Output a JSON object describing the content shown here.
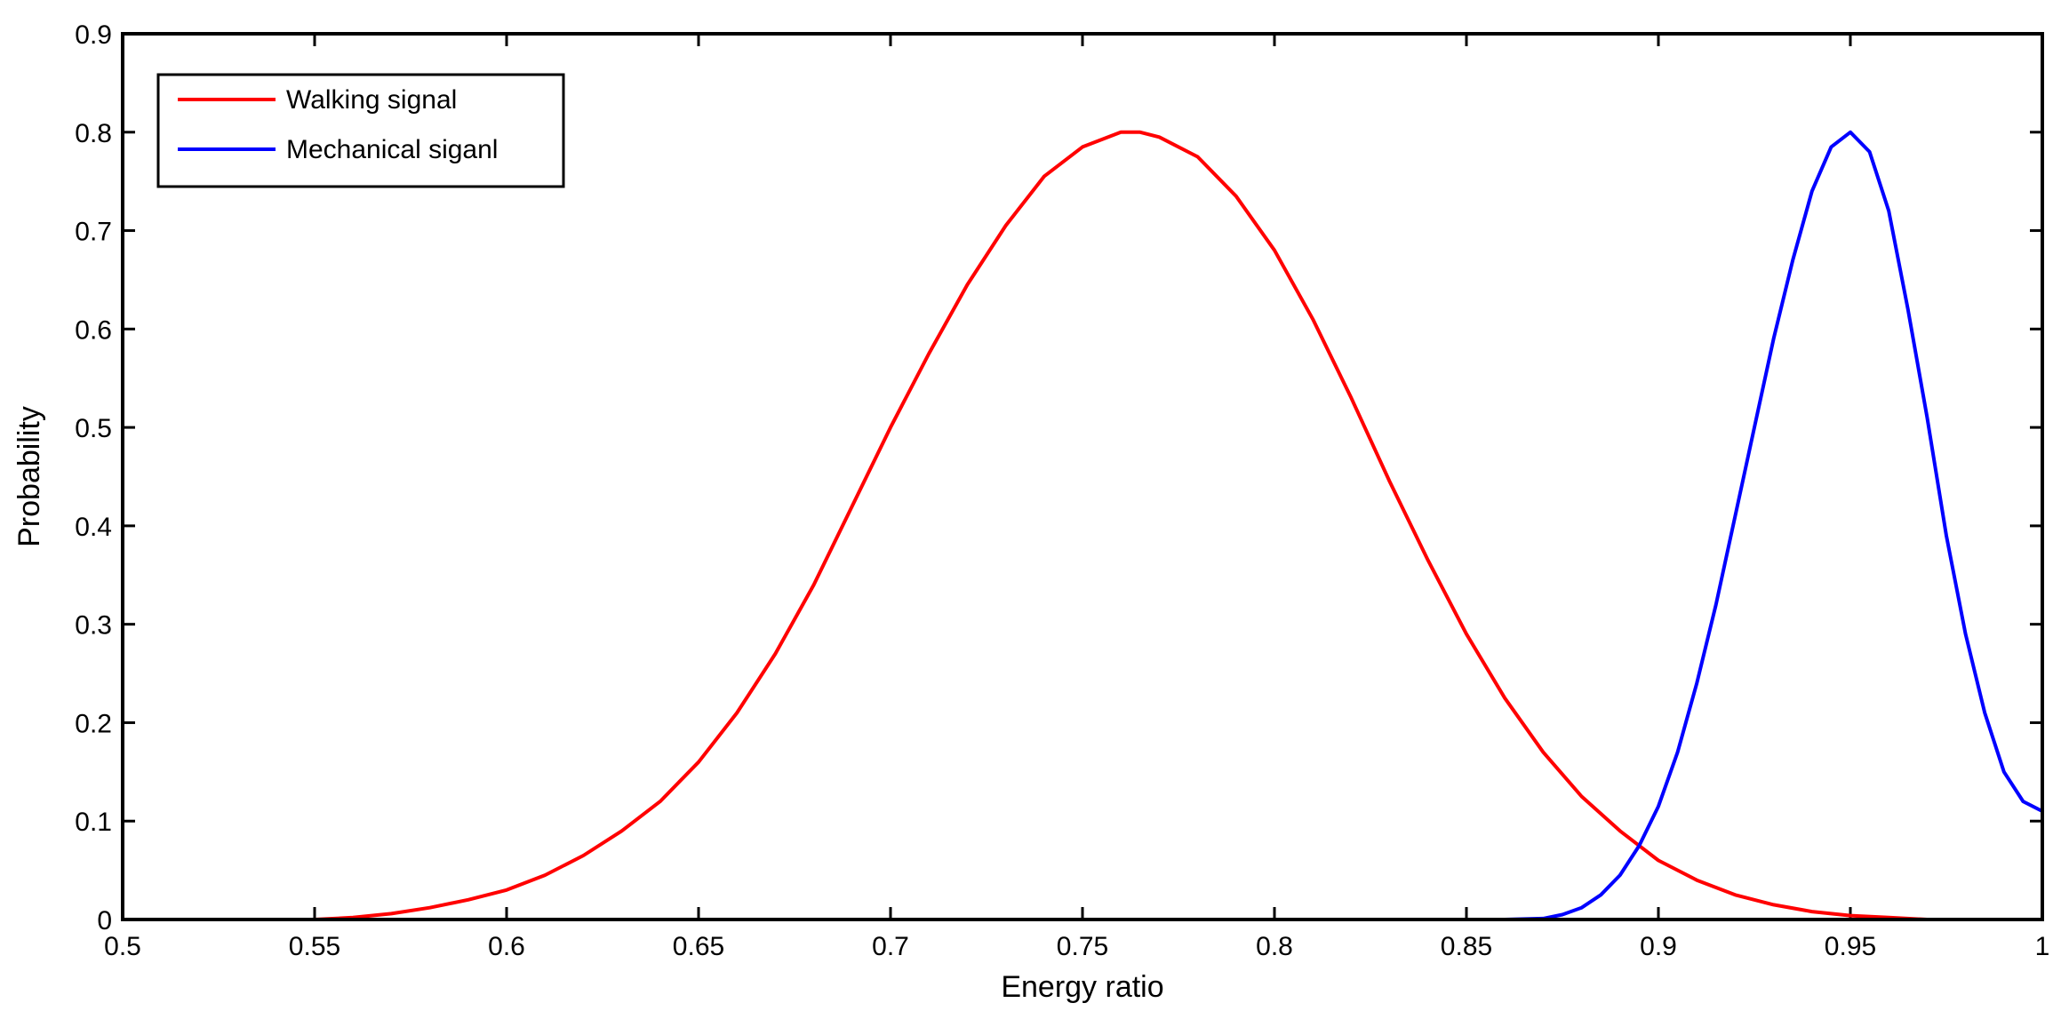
{
  "chart_data": {
    "type": "line",
    "title": "",
    "xlabel": "Energy ratio",
    "ylabel": "Probability",
    "xlim": [
      0.5,
      1.0
    ],
    "ylim": [
      0,
      0.9
    ],
    "xticks": [
      0.5,
      0.55,
      0.6,
      0.65,
      0.7,
      0.75,
      0.8,
      0.85,
      0.9,
      0.95,
      1.0
    ],
    "xtick_labels": [
      "0.5",
      "0.55",
      "0.6",
      "0.65",
      "0.7",
      "0.75",
      "0.8",
      "0.85",
      "0.9",
      "0.95",
      "1"
    ],
    "yticks": [
      0,
      0.1,
      0.2,
      0.3,
      0.4,
      0.5,
      0.6,
      0.7,
      0.8,
      0.9
    ],
    "ytick_labels": [
      "0",
      "0.1",
      "0.2",
      "0.3",
      "0.4",
      "0.5",
      "0.6",
      "0.7",
      "0.8",
      "0.9"
    ],
    "grid": false,
    "legend_position": "top-left",
    "series": [
      {
        "name": "Walking signal",
        "color": "#ff0000",
        "x": [
          0.5,
          0.52,
          0.54,
          0.55,
          0.56,
          0.57,
          0.58,
          0.59,
          0.6,
          0.61,
          0.62,
          0.63,
          0.64,
          0.65,
          0.66,
          0.67,
          0.68,
          0.69,
          0.7,
          0.71,
          0.72,
          0.73,
          0.74,
          0.75,
          0.76,
          0.765,
          0.77,
          0.78,
          0.79,
          0.8,
          0.81,
          0.82,
          0.83,
          0.84,
          0.85,
          0.86,
          0.87,
          0.88,
          0.89,
          0.9,
          0.91,
          0.92,
          0.93,
          0.94,
          0.95,
          0.96,
          0.97,
          0.98,
          0.99,
          1.0
        ],
        "y": [
          0,
          0,
          0,
          0,
          0.002,
          0.006,
          0.012,
          0.02,
          0.03,
          0.045,
          0.065,
          0.09,
          0.12,
          0.16,
          0.21,
          0.27,
          0.34,
          0.42,
          0.5,
          0.575,
          0.645,
          0.705,
          0.755,
          0.785,
          0.8,
          0.8,
          0.795,
          0.775,
          0.735,
          0.68,
          0.61,
          0.53,
          0.445,
          0.365,
          0.29,
          0.225,
          0.17,
          0.125,
          0.09,
          0.06,
          0.04,
          0.025,
          0.015,
          0.008,
          0.004,
          0.002,
          0,
          0,
          0,
          0
        ]
      },
      {
        "name": "Mechanical siganl",
        "color": "#0000ff",
        "x": [
          0.5,
          0.6,
          0.7,
          0.8,
          0.86,
          0.87,
          0.875,
          0.88,
          0.885,
          0.89,
          0.895,
          0.9,
          0.905,
          0.91,
          0.915,
          0.92,
          0.925,
          0.93,
          0.935,
          0.94,
          0.945,
          0.95,
          0.955,
          0.96,
          0.965,
          0.97,
          0.975,
          0.98,
          0.985,
          0.99,
          0.995,
          1.0
        ],
        "y": [
          0,
          0,
          0,
          0,
          0,
          0.001,
          0.005,
          0.012,
          0.025,
          0.045,
          0.075,
          0.115,
          0.17,
          0.24,
          0.32,
          0.41,
          0.5,
          0.59,
          0.67,
          0.74,
          0.785,
          0.8,
          0.78,
          0.72,
          0.62,
          0.51,
          0.39,
          0.29,
          0.21,
          0.15,
          0.12,
          0.11
        ]
      }
    ]
  }
}
